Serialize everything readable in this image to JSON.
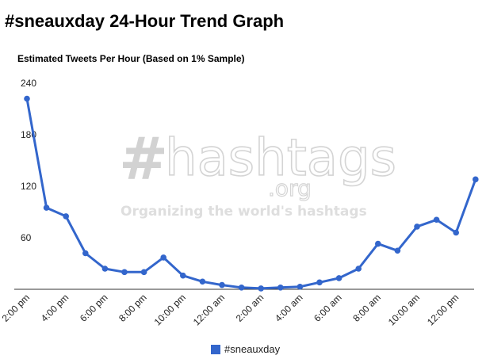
{
  "page": {
    "title": "#sneauxday 24-Hour Trend Graph"
  },
  "watermark": {
    "hash": "#",
    "name": "hashtags",
    "org": ".org",
    "tagline": "Organizing the world's hashtags"
  },
  "colors": {
    "series": "#3366cc",
    "axis": "#333333"
  },
  "chart_data": {
    "type": "line",
    "title": "Estimated Tweets Per Hour (Based on 1% Sample)",
    "xlabel": "",
    "ylabel": "",
    "ylim": [
      0,
      240
    ],
    "yticks": [
      60,
      120,
      180,
      240
    ],
    "grid": false,
    "legend": "bottom",
    "x_tick_labels": [
      "2:00 pm",
      "4:00 pm",
      "6:00 pm",
      "8:00 pm",
      "10:00 pm",
      "12:00 am",
      "2:00 am",
      "4:00 am",
      "6:00 am",
      "8:00 am",
      "10:00 am",
      "12:00 pm"
    ],
    "series": [
      {
        "name": "#sneauxday",
        "values": [
          222,
          95,
          85,
          42,
          24,
          20,
          20,
          37,
          16,
          9,
          5,
          2,
          1,
          2,
          3,
          8,
          13,
          24,
          53,
          45,
          73,
          81,
          66,
          128
        ]
      }
    ]
  }
}
